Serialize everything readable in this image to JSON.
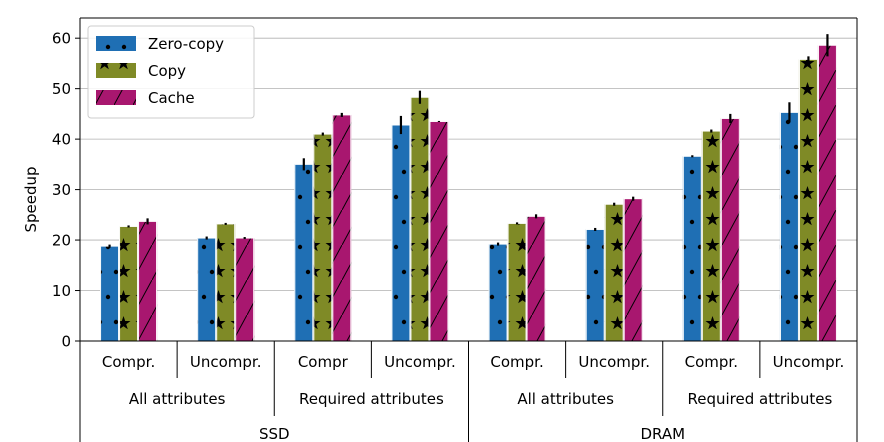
{
  "chart_data": {
    "type": "bar",
    "title": "",
    "xlabel": "",
    "ylabel": "Speedup",
    "ylim": [
      0,
      64
    ],
    "yticks": [
      0,
      10,
      20,
      30,
      40,
      50,
      60
    ],
    "grid": "y",
    "legend_position": "top-left",
    "categories": [
      "Compr.",
      "Uncompr.",
      "Compr",
      "Uncompr.",
      "Compr.",
      "Uncompr.",
      "Compr.",
      "Uncompr."
    ],
    "group_level1": [
      {
        "label": "All attributes",
        "span": [
          0,
          1
        ]
      },
      {
        "label": "Required attributes",
        "span": [
          2,
          3
        ]
      },
      {
        "label": "All attributes",
        "span": [
          4,
          5
        ]
      },
      {
        "label": "Required attributes",
        "span": [
          6,
          7
        ]
      }
    ],
    "group_level2": [
      {
        "label": "SSD",
        "span": [
          0,
          3
        ]
      },
      {
        "label": "DRAM",
        "span": [
          4,
          7
        ]
      }
    ],
    "series": [
      {
        "name": "Zero-copy",
        "color": "#1f6fb4",
        "pattern": "dots",
        "values": [
          18.8,
          20.4,
          35.0,
          42.8,
          19.2,
          22.1,
          36.6,
          45.3
        ],
        "errors": [
          0.3,
          0.3,
          1.2,
          1.8,
          0.3,
          0.3,
          0.2,
          2.0
        ]
      },
      {
        "name": "Copy",
        "color": "#7f8a26",
        "pattern": "stars",
        "values": [
          22.7,
          23.2,
          41.0,
          48.3,
          23.3,
          27.1,
          41.6,
          55.8
        ],
        "errors": [
          0.2,
          0.2,
          0.3,
          1.3,
          0.2,
          0.3,
          0.3,
          0.6
        ]
      },
      {
        "name": "Cache",
        "color": "#a8176f",
        "pattern": "slash",
        "values": [
          23.7,
          20.4,
          44.8,
          43.5,
          24.7,
          28.2,
          44.1,
          58.6
        ],
        "errors": [
          0.6,
          0.2,
          0.4,
          0.1,
          0.4,
          0.4,
          0.9,
          2.2
        ]
      }
    ]
  }
}
